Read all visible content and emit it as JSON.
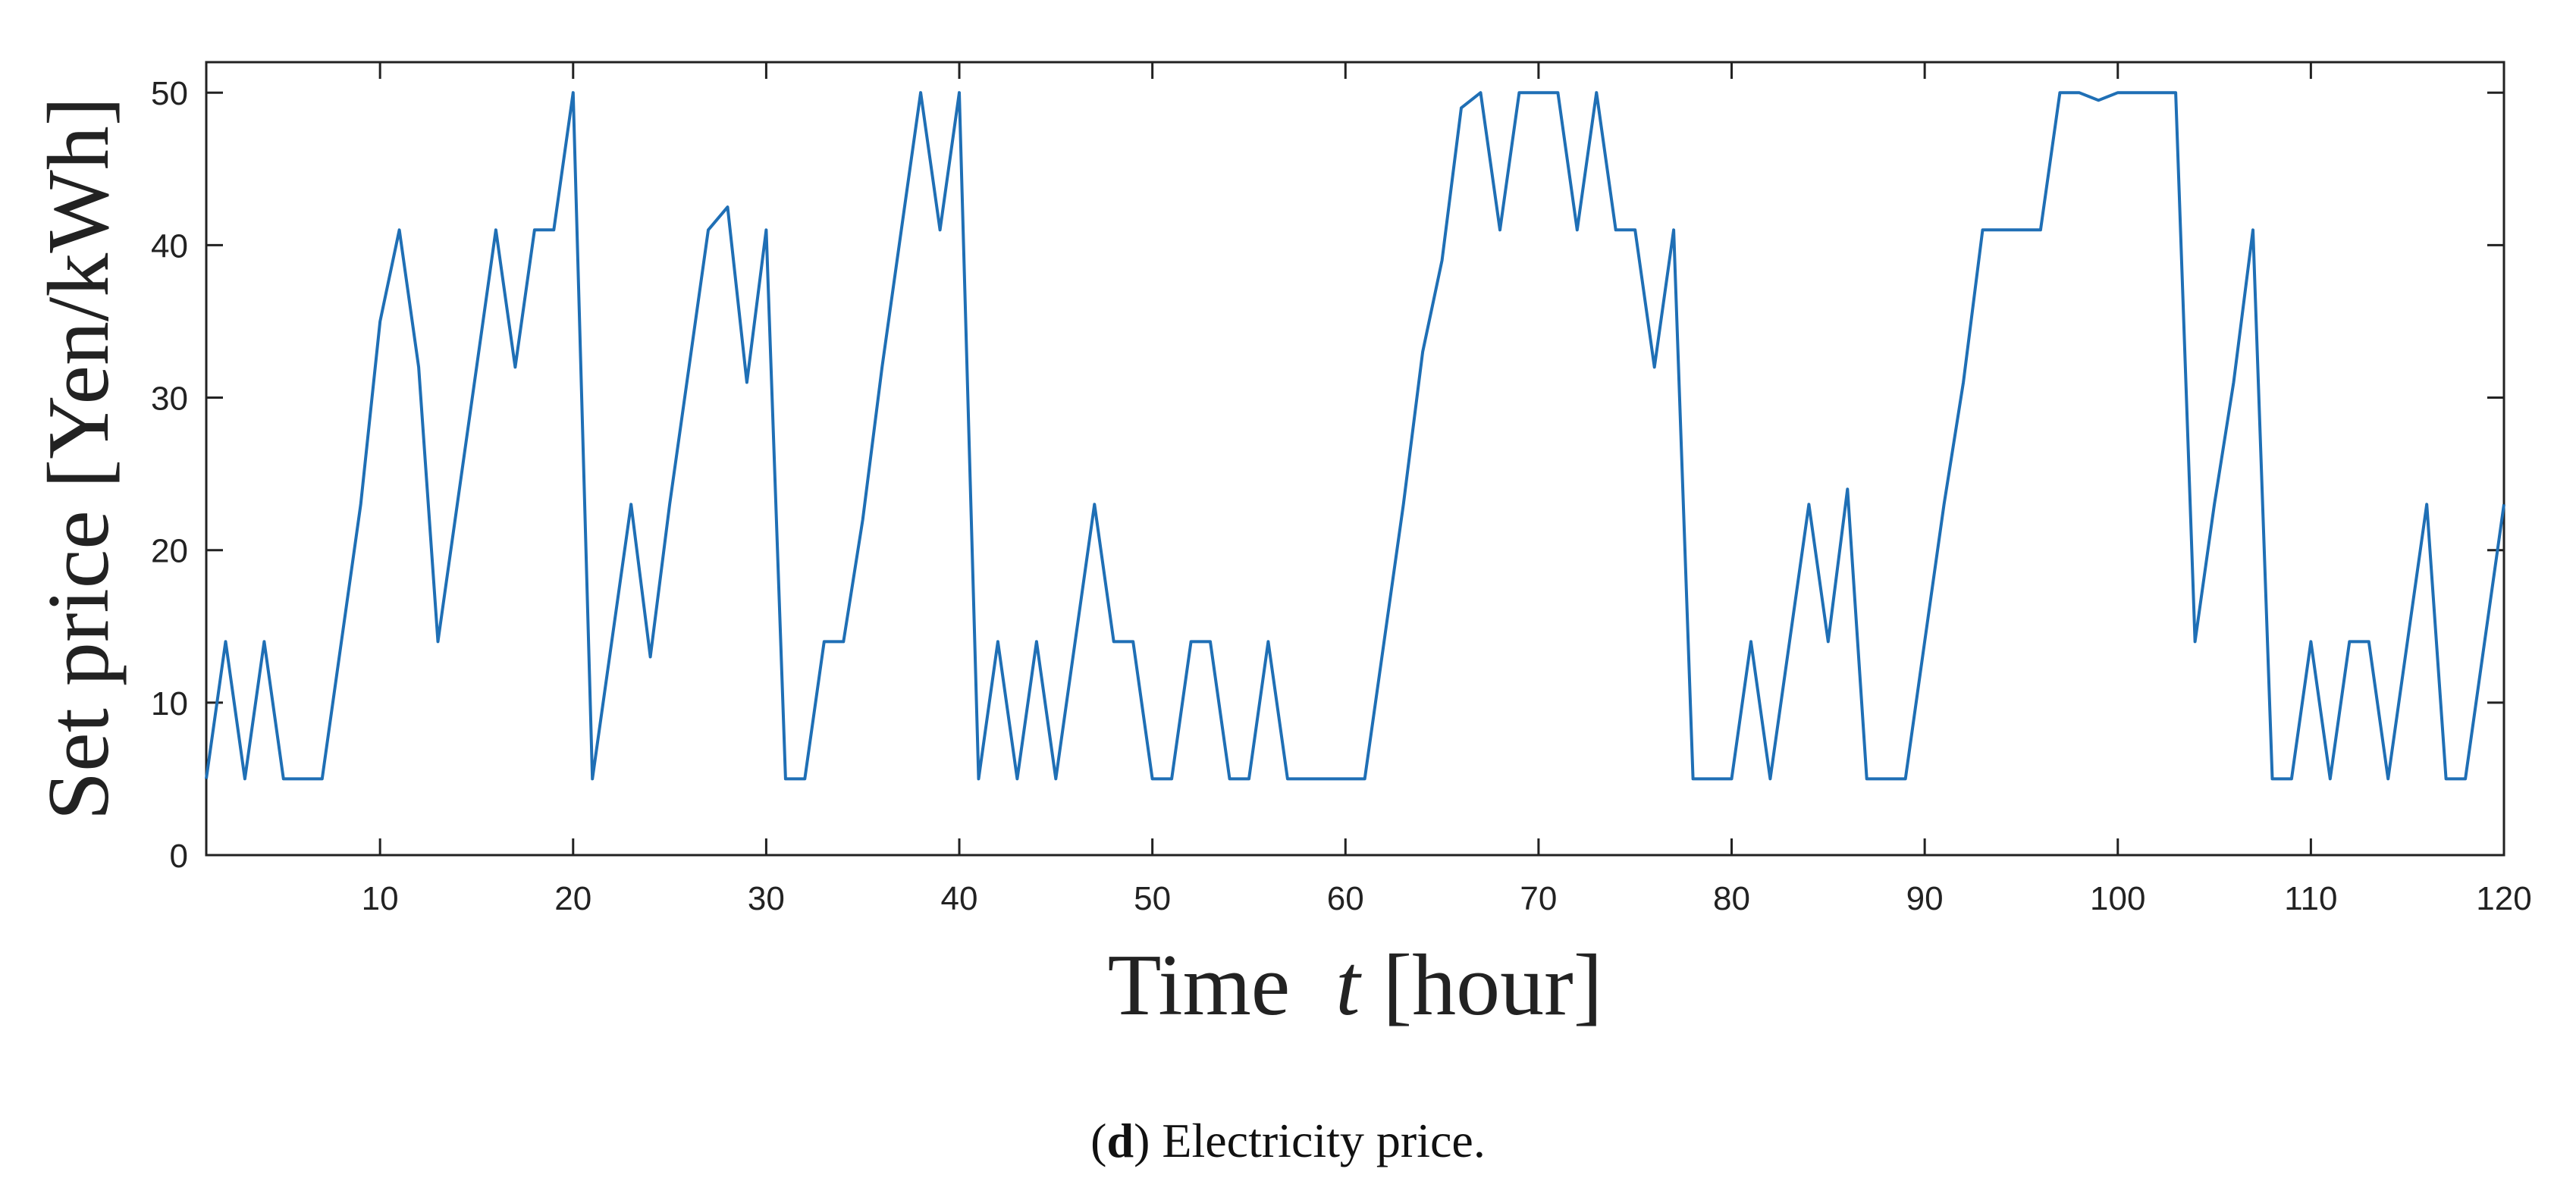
{
  "caption": {
    "letter": "d",
    "text": " Electricity price."
  },
  "colors": {
    "line": "#1f6fb5",
    "axis": "#222222"
  },
  "chart_data": {
    "type": "line",
    "title": "",
    "xlabel": "Time",
    "xlabel_var": "t",
    "xlabel_unit": "[hour]",
    "ylabel": "Set price [Yen/kWh]",
    "xlim": [
      1,
      120
    ],
    "ylim": [
      0,
      52
    ],
    "xticks": [
      10,
      20,
      30,
      40,
      50,
      60,
      70,
      80,
      90,
      100,
      110,
      120
    ],
    "yticks": [
      0,
      10,
      20,
      30,
      40,
      50
    ],
    "grid": false,
    "series": [
      {
        "name": "Set price",
        "x": [
          1,
          2,
          3,
          4,
          5,
          6,
          7,
          8,
          9,
          10,
          11,
          12,
          13,
          14,
          15,
          16,
          17,
          18,
          19,
          20,
          21,
          22,
          23,
          24,
          25,
          26,
          27,
          28,
          29,
          30,
          31,
          32,
          33,
          34,
          35,
          36,
          37,
          38,
          39,
          40,
          41,
          42,
          43,
          44,
          45,
          46,
          47,
          48,
          49,
          50,
          51,
          52,
          53,
          54,
          55,
          56,
          57,
          58,
          59,
          60,
          61,
          62,
          63,
          64,
          65,
          66,
          67,
          68,
          69,
          70,
          71,
          72,
          73,
          74,
          75,
          76,
          77,
          78,
          79,
          80,
          81,
          82,
          83,
          84,
          85,
          86,
          87,
          88,
          89,
          90,
          91,
          92,
          93,
          94,
          95,
          96,
          97,
          98,
          99,
          100,
          101,
          102,
          103,
          104,
          105,
          106,
          107,
          108,
          109,
          110,
          111,
          112,
          113,
          114,
          115,
          116,
          117,
          118,
          119,
          120
        ],
        "values": [
          5,
          14,
          5,
          14,
          5,
          5,
          5,
          14,
          23,
          35,
          41,
          32,
          14,
          23,
          32,
          41,
          32,
          41,
          41,
          50,
          5,
          14,
          23,
          13,
          23,
          32,
          41,
          42.5,
          31,
          41,
          5,
          5,
          14,
          14,
          22,
          32,
          41,
          50,
          41,
          50,
          5,
          14,
          5,
          14,
          5,
          14,
          23,
          14,
          14,
          5,
          5,
          14,
          14,
          5,
          5,
          14,
          5,
          5,
          5,
          5,
          5,
          14,
          23,
          33,
          39,
          49,
          50,
          41,
          50,
          50,
          50,
          41,
          50,
          41,
          41,
          32,
          41,
          5,
          5,
          5,
          14,
          5,
          14,
          23,
          14,
          24,
          5,
          5,
          5,
          14,
          23,
          31,
          41,
          41,
          41,
          41,
          50,
          50,
          49.5,
          50,
          50,
          50,
          50,
          14,
          23,
          31,
          41,
          5,
          5,
          14,
          5,
          14,
          14,
          5,
          14,
          23,
          5,
          5,
          14,
          23
        ]
      }
    ]
  }
}
